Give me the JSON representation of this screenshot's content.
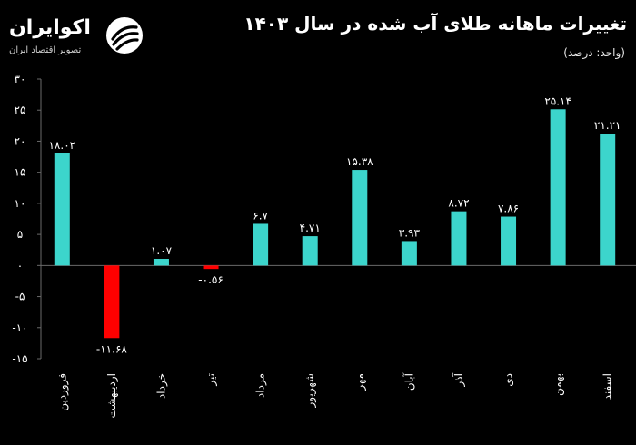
{
  "header": {
    "title": "تغییرات ماهانه طلای آب شده در سال ۱۴۰۳",
    "unit": "(واحد: درصد)"
  },
  "brand": {
    "name": "اکوایران",
    "tagline": "تصویر اقتصاد ایران",
    "logo_icon": "swirl-logo-icon"
  },
  "colors": {
    "positive": "#3cd5cc",
    "negative": "#ff0000",
    "background": "#000000",
    "text": "#ffffff",
    "grid": "#6a6a6a"
  },
  "chart_data": {
    "type": "bar",
    "categories": [
      "فروردین",
      "اردیبهشت",
      "خرداد",
      "تیر",
      "مرداد",
      "شهریور",
      "مهر",
      "آبان",
      "آذر",
      "دی",
      "بهمن",
      "اسفند"
    ],
    "values": [
      18.02,
      -11.68,
      1.07,
      -0.56,
      6.7,
      4.71,
      15.38,
      3.93,
      8.72,
      7.86,
      25.14,
      21.21
    ],
    "value_labels": [
      "۱۸.۰۲",
      "-۱۱.۶۸",
      "۱.۰۷",
      "-۰.۵۶",
      "۶.۷",
      "۴.۷۱",
      "۱۵.۳۸",
      "۳.۹۳",
      "۸.۷۲",
      "۷.۸۶",
      "۲۵.۱۴",
      "۲۱.۲۱"
    ],
    "yticks": [
      30,
      25,
      20,
      15,
      10,
      5,
      0,
      -5,
      -10,
      -15
    ],
    "ytick_labels": [
      "۳۰",
      "۲۵",
      "۲۰",
      "۱۵",
      "۱۰",
      "۵",
      "۰",
      "-۵",
      "-۱۰",
      "-۱۵"
    ],
    "ylim": [
      -15,
      30
    ],
    "grid": false
  }
}
